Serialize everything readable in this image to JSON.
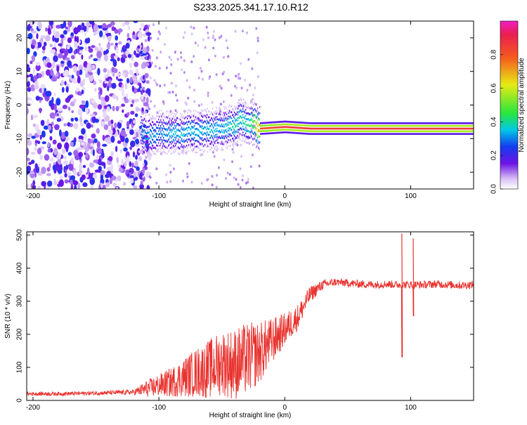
{
  "figure_title": "S233.2025.341.17.10.R12",
  "chart_data": [
    {
      "type": "heatmap",
      "title": "S233.2025.341.17.10.R12",
      "xlabel": "Height of straight line (km)",
      "ylabel": "Frequency (Hz)",
      "xlim": [
        -205,
        150
      ],
      "ylim": [
        -25,
        25
      ],
      "x_ticks": [
        -200,
        -100,
        0,
        100
      ],
      "x_tick_labels": [
        "-200",
        "-100",
        "0",
        "100"
      ],
      "y_ticks": [
        20,
        10,
        0,
        -10,
        -20
      ],
      "y_tick_labels": [
        "20",
        "10",
        "0",
        "-10",
        "-20"
      ],
      "colorbar": {
        "label": "Normalized spectral amplitude",
        "range": [
          0,
          1
        ],
        "ticks": [
          0,
          0.2,
          0.4,
          0.6,
          0.8
        ],
        "tick_labels": [
          "0.0",
          "0.2",
          "0.4",
          "0.6",
          "0.8"
        ]
      },
      "signal_track": {
        "description_points_x": [
          -115,
          -110,
          -100,
          -90,
          -80,
          -70,
          -60,
          -50,
          -40,
          -35,
          -30,
          -25,
          -20,
          0,
          20,
          50,
          100,
          150
        ],
        "frequency_hz": [
          -8,
          -9,
          -8,
          -8.5,
          -8,
          -8,
          -7.5,
          -7,
          -6,
          -4,
          -6,
          -5.5,
          -7,
          -6.5,
          -7,
          -7,
          -7,
          -7
        ],
        "peak_amplitude": [
          0.3,
          0.35,
          0.3,
          0.35,
          0.35,
          0.35,
          0.35,
          0.35,
          0.4,
          0.4,
          0.4,
          0.5,
          0.8,
          0.85,
          0.85,
          0.85,
          0.85,
          0.85
        ]
      },
      "noise_region_x": [
        -205,
        -115
      ]
    },
    {
      "type": "line",
      "title": "",
      "xlabel": "Height of straight line (km)",
      "ylabel": "SNR (10 * v/v)",
      "xlim": [
        -205,
        150
      ],
      "ylim": [
        0,
        510
      ],
      "x_ticks": [
        -200,
        -100,
        0,
        100
      ],
      "x_tick_labels": [
        "-200",
        "-100",
        "0",
        "100"
      ],
      "y_ticks": [
        0,
        100,
        200,
        300,
        400,
        500
      ],
      "y_tick_labels": [
        "0",
        "100",
        "200",
        "300",
        "400",
        "500"
      ],
      "series": [
        {
          "name": "SNR",
          "color": "#e8332f",
          "x": [
            -205,
            -180,
            -150,
            -120,
            -110,
            -100,
            -90,
            -80,
            -70,
            -60,
            -50,
            -40,
            -30,
            -20,
            -10,
            0,
            10,
            20,
            30,
            40,
            50,
            60,
            70,
            80,
            90,
            100,
            110,
            120,
            130,
            140,
            150
          ],
          "y": [
            20,
            20,
            22,
            25,
            35,
            45,
            55,
            70,
            85,
            95,
            115,
            110,
            125,
            145,
            180,
            215,
            250,
            320,
            350,
            358,
            355,
            352,
            350,
            352,
            350,
            350,
            350,
            352,
            350,
            348,
            350
          ],
          "noise_amplitude": [
            6,
            6,
            6,
            8,
            25,
            35,
            45,
            60,
            75,
            90,
            100,
            110,
            110,
            95,
            70,
            50,
            40,
            25,
            15,
            12,
            12,
            12,
            12,
            12,
            12,
            12,
            12,
            12,
            12,
            12,
            12
          ]
        }
      ],
      "spikes": [
        {
          "x": 93,
          "y_max": 505,
          "y_min": 130
        },
        {
          "x": 102,
          "y_max": 490,
          "y_min": 255
        }
      ]
    }
  ]
}
